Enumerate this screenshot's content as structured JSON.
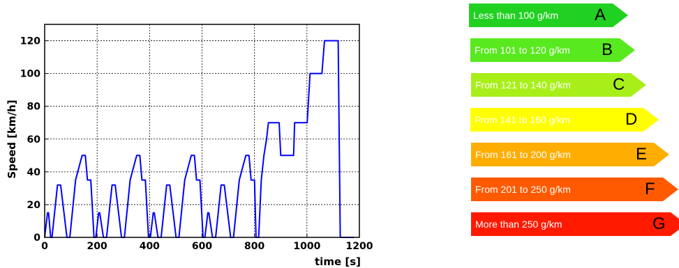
{
  "chart_data": {
    "type": "line",
    "xlabel": "time [s]",
    "ylabel": "Speed [km/h]",
    "xlim": [
      0,
      1200
    ],
    "ylim": [
      0,
      130
    ],
    "xticks": [
      0,
      200,
      400,
      600,
      800,
      1000,
      1200
    ],
    "yticks": [
      0,
      20,
      40,
      60,
      80,
      100,
      120
    ],
    "grid": true,
    "series": [
      {
        "color": "#0000ff",
        "x": [
          0,
          11,
          15,
          23,
          28,
          49,
          61,
          85,
          96,
          118,
          143,
          155,
          163,
          176,
          188,
          195,
          206,
          210,
          224,
          236,
          257,
          269,
          293,
          304,
          326,
          351,
          363,
          371,
          384,
          396,
          403,
          414,
          418,
          432,
          444,
          465,
          477,
          501,
          512,
          534,
          559,
          571,
          579,
          592,
          604,
          611,
          622,
          626,
          640,
          652,
          673,
          685,
          709,
          720,
          742,
          767,
          779,
          787,
          800,
          806,
          816,
          826,
          836,
          846,
          853,
          894,
          900,
          949,
          953,
          1001,
          1012,
          1057,
          1067,
          1119,
          1127,
          1145,
          1180
        ],
        "y": [
          0,
          15,
          15,
          0,
          0,
          32,
          32,
          0,
          0,
          35,
          50,
          50,
          35,
          35,
          0,
          0,
          15,
          15,
          0,
          0,
          32,
          32,
          0,
          0,
          35,
          50,
          50,
          35,
          35,
          0,
          0,
          15,
          15,
          0,
          0,
          32,
          32,
          0,
          0,
          35,
          50,
          50,
          35,
          35,
          0,
          0,
          15,
          15,
          0,
          0,
          32,
          32,
          0,
          0,
          35,
          50,
          50,
          35,
          35,
          0,
          0,
          35,
          50,
          60,
          70,
          70,
          50,
          50,
          70,
          70,
          100,
          100,
          120,
          120,
          0,
          0,
          0
        ]
      }
    ]
  },
  "classes": [
    {
      "label": "Less than 100 g/km",
      "letter": "A",
      "color": "#21d121",
      "text_color": "#ffffff"
    },
    {
      "label": "From 101 to 120 g/km",
      "letter": "B",
      "color": "#58e91e",
      "text_color": "#ffffff"
    },
    {
      "label": "From 121 to 140 g/km",
      "letter": "C",
      "color": "#a8ef19",
      "text_color": "#ffffff"
    },
    {
      "label": "From 141 to 160 g/km",
      "letter": "D",
      "color": "#ffff00",
      "text_color": "#ffffff"
    },
    {
      "label": "From 161 to 200 g/km",
      "letter": "E",
      "color": "#ffad00",
      "text_color": "#ffffff"
    },
    {
      "label": "From 201 to 250 g/km",
      "letter": "F",
      "color": "#ff5a00",
      "text_color": "#ffffff"
    },
    {
      "label": "More than 250 g/km",
      "letter": "G",
      "color": "#ff1a00",
      "text_color": "#ffffff"
    }
  ]
}
